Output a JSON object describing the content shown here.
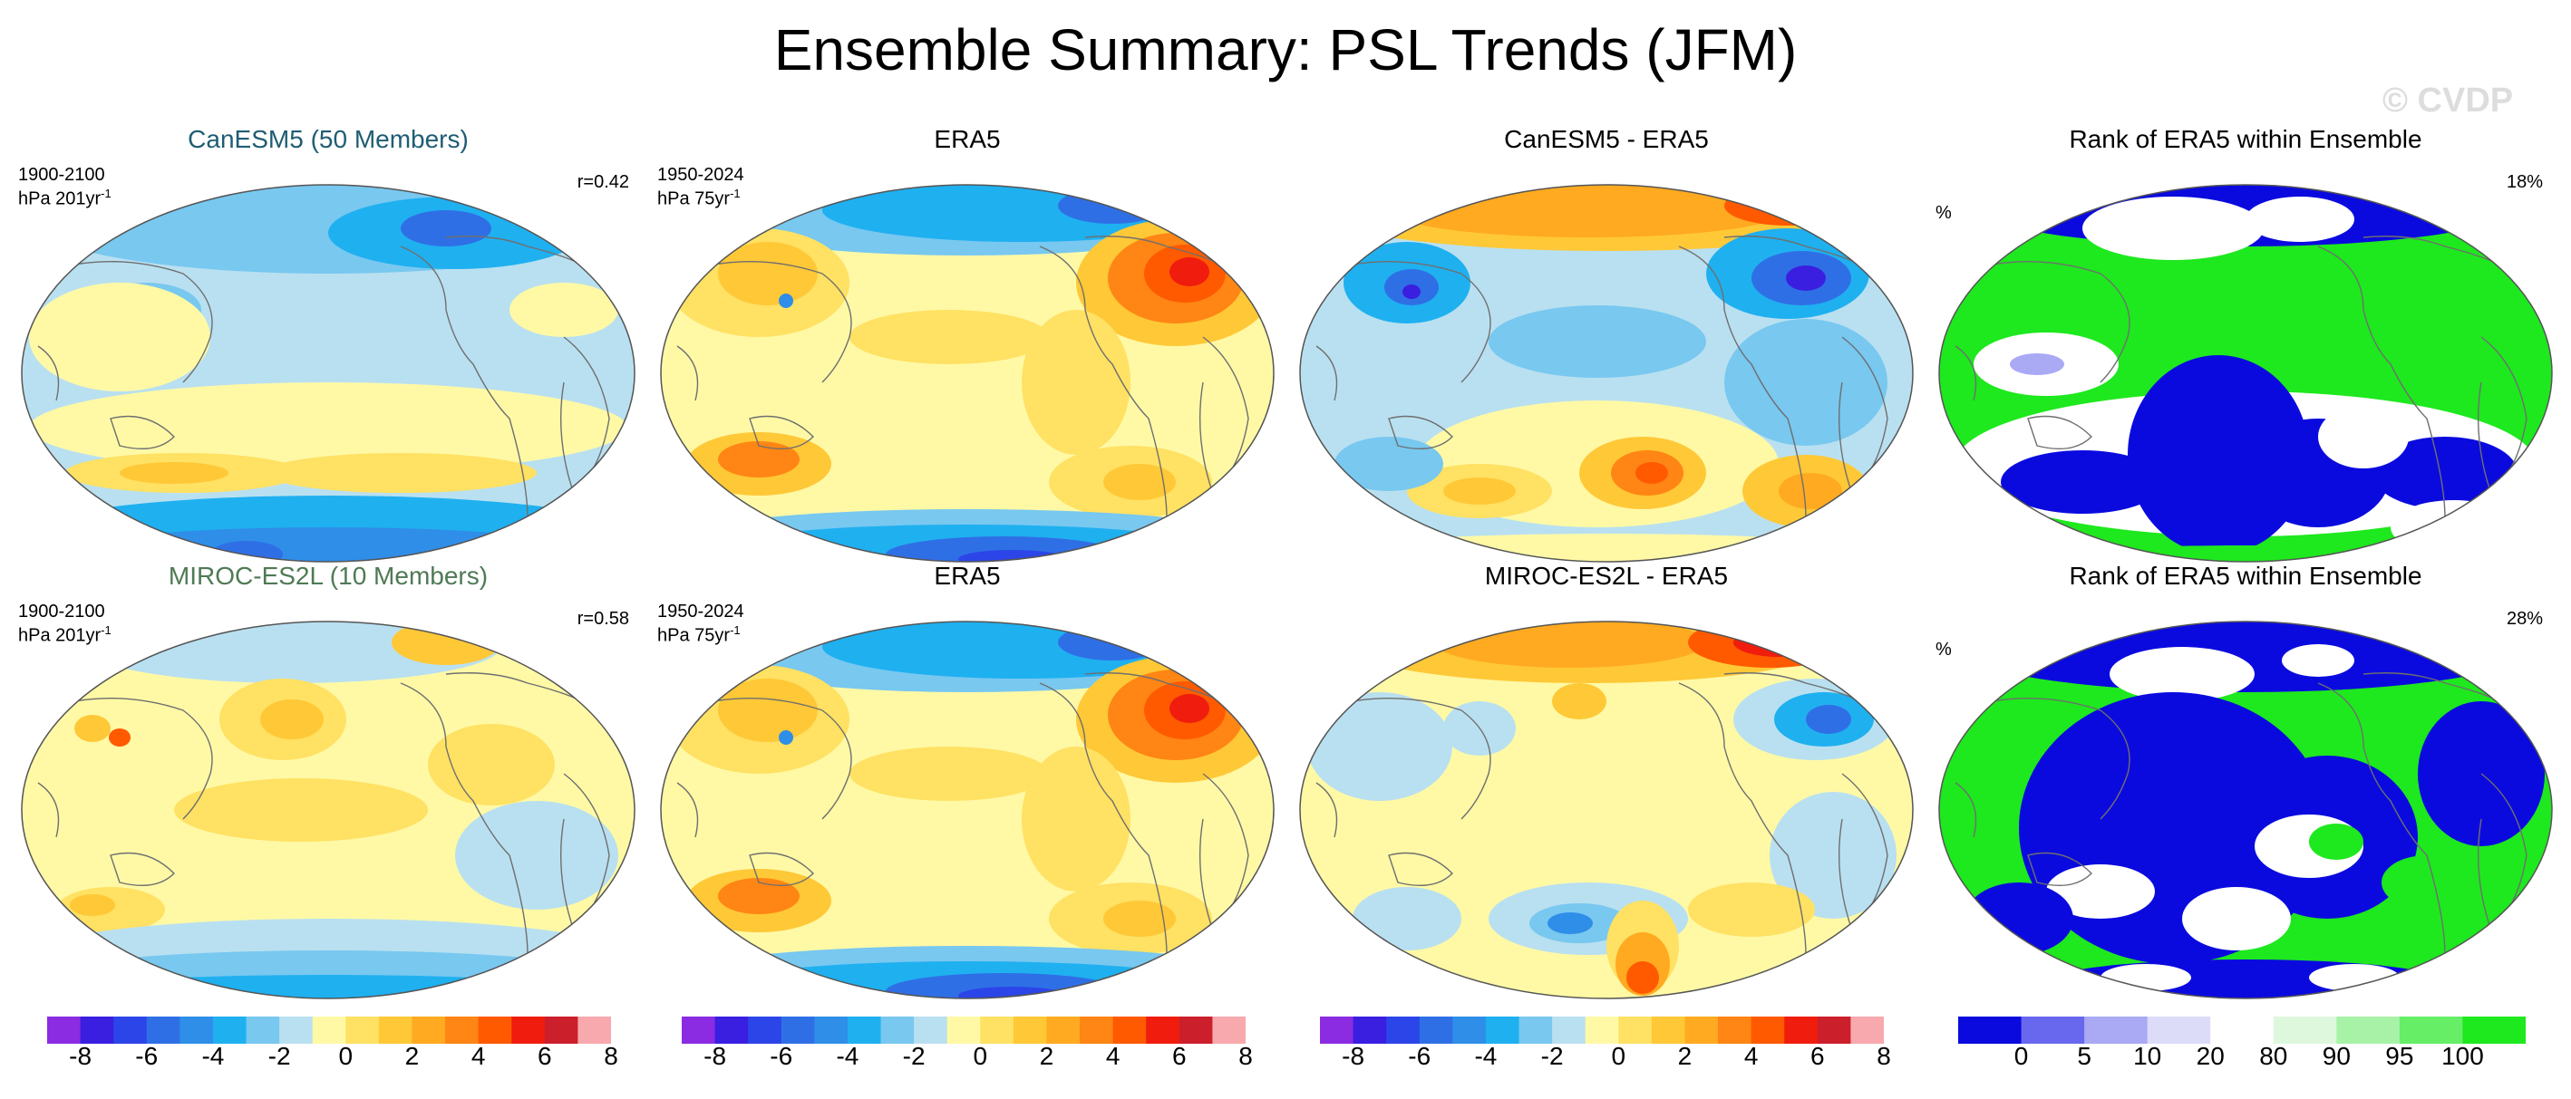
{
  "title": "Ensemble Summary: PSL Trends (JFM)",
  "watermark": "© CVDP",
  "rows": [
    {
      "model": {
        "title": "CanESM5 (50 Members)",
        "period": "1900-2100",
        "units": "hPa 201yr",
        "units_sup": "-1",
        "r": "r=0.42",
        "pattern": "model_cesm"
      },
      "obs": {
        "title": "ERA5",
        "period": "1950-2024",
        "units": "hPa 75yr",
        "units_sup": "-1",
        "pattern": "obs"
      },
      "diff": {
        "title": "CanESM5 - ERA5",
        "pattern": "diff_cesm"
      },
      "rank": {
        "title": "Rank of ERA5 within Ensemble",
        "unit": "%",
        "value": "18%",
        "pattern": "rank_cesm"
      }
    },
    {
      "model": {
        "title": "MIROC-ES2L (10 Members)",
        "period": "1900-2100",
        "units": "hPa 201yr",
        "units_sup": "-1",
        "r": "r=0.58",
        "pattern": "model_miroc"
      },
      "obs": {
        "title": "ERA5",
        "period": "1950-2024",
        "units": "hPa 75yr",
        "units_sup": "-1",
        "pattern": "obs"
      },
      "diff": {
        "title": "MIROC-ES2L - ERA5",
        "pattern": "diff_miroc"
      },
      "rank": {
        "title": "Rank of ERA5 within Ensemble",
        "unit": "%",
        "value": "28%",
        "pattern": "rank_miroc"
      }
    }
  ],
  "colorbars": [
    {
      "ticks": [
        "-8",
        "-6",
        "-4",
        "-2",
        "0",
        "2",
        "4",
        "6",
        "8"
      ],
      "colors": [
        "#8b2be2",
        "#3a1fe0",
        "#2b45e8",
        "#2f6fe6",
        "#2f8ee8",
        "#1fb0f0",
        "#78c8f0",
        "#b9e0f0",
        "#fff9a6",
        "#ffe163",
        "#ffc837",
        "#ffaa20",
        "#ff8514",
        "#ff5a00",
        "#f01c0e",
        "#cc1f2c",
        "#f7a9ad"
      ]
    },
    {
      "ticks": [
        "-8",
        "-6",
        "-4",
        "-2",
        "0",
        "2",
        "4",
        "6",
        "8"
      ],
      "colors": [
        "#8b2be2",
        "#3a1fe0",
        "#2b45e8",
        "#2f6fe6",
        "#2f8ee8",
        "#1fb0f0",
        "#78c8f0",
        "#b9e0f0",
        "#fff9a6",
        "#ffe163",
        "#ffc837",
        "#ffaa20",
        "#ff8514",
        "#ff5a00",
        "#f01c0e",
        "#cc1f2c",
        "#f7a9ad"
      ]
    },
    {
      "ticks": [
        "-8",
        "-6",
        "-4",
        "-2",
        "0",
        "2",
        "4",
        "6",
        "8"
      ],
      "colors": [
        "#8b2be2",
        "#3a1fe0",
        "#2b45e8",
        "#2f6fe6",
        "#2f8ee8",
        "#1fb0f0",
        "#78c8f0",
        "#b9e0f0",
        "#fff9a6",
        "#ffe163",
        "#ffc837",
        "#ffaa20",
        "#ff8514",
        "#ff5a00",
        "#f01c0e",
        "#cc1f2c",
        "#f7a9ad"
      ]
    },
    {
      "ticks": [
        "0",
        "5",
        "10",
        "20",
        "80",
        "90",
        "95",
        "100"
      ],
      "colors": [
        "#0a0adf",
        "#6868ee",
        "#a9a9f4",
        "#dcdcf8",
        "#ffffff",
        "#ddf8dd",
        "#a8f2a8",
        "#66ee66",
        "#1ee81e"
      ]
    }
  ],
  "chart_data": {
    "type": "heatmap",
    "title": "Ensemble Summary: PSL Trends (JFM)",
    "variable": "PSL trend",
    "scale": {
      "ticks": [
        -8,
        -6,
        -4,
        -2,
        0,
        2,
        4,
        6,
        8
      ]
    },
    "rank_scale": {
      "ticks": [
        0,
        5,
        10,
        20,
        80,
        90,
        95,
        100
      ]
    },
    "panels": [
      {
        "title": "CanESM5 (50 Members)",
        "period": "1900-2100",
        "units": "hPa 201yr-1",
        "pattern_correlation": 0.42
      },
      {
        "title": "ERA5",
        "period": "1950-2024",
        "units": "hPa 75yr-1"
      },
      {
        "title": "CanESM5 - ERA5"
      },
      {
        "title": "Rank of ERA5 within Ensemble",
        "units": "%",
        "value": 18
      },
      {
        "title": "MIROC-ES2L (10 Members)",
        "period": "1900-2100",
        "units": "hPa 201yr-1",
        "pattern_correlation": 0.58
      },
      {
        "title": "ERA5",
        "period": "1950-2024",
        "units": "hPa 75yr-1"
      },
      {
        "title": "MIROC-ES2L - ERA5"
      },
      {
        "title": "Rank of ERA5 within Ensemble",
        "units": "%",
        "value": 28
      }
    ]
  }
}
